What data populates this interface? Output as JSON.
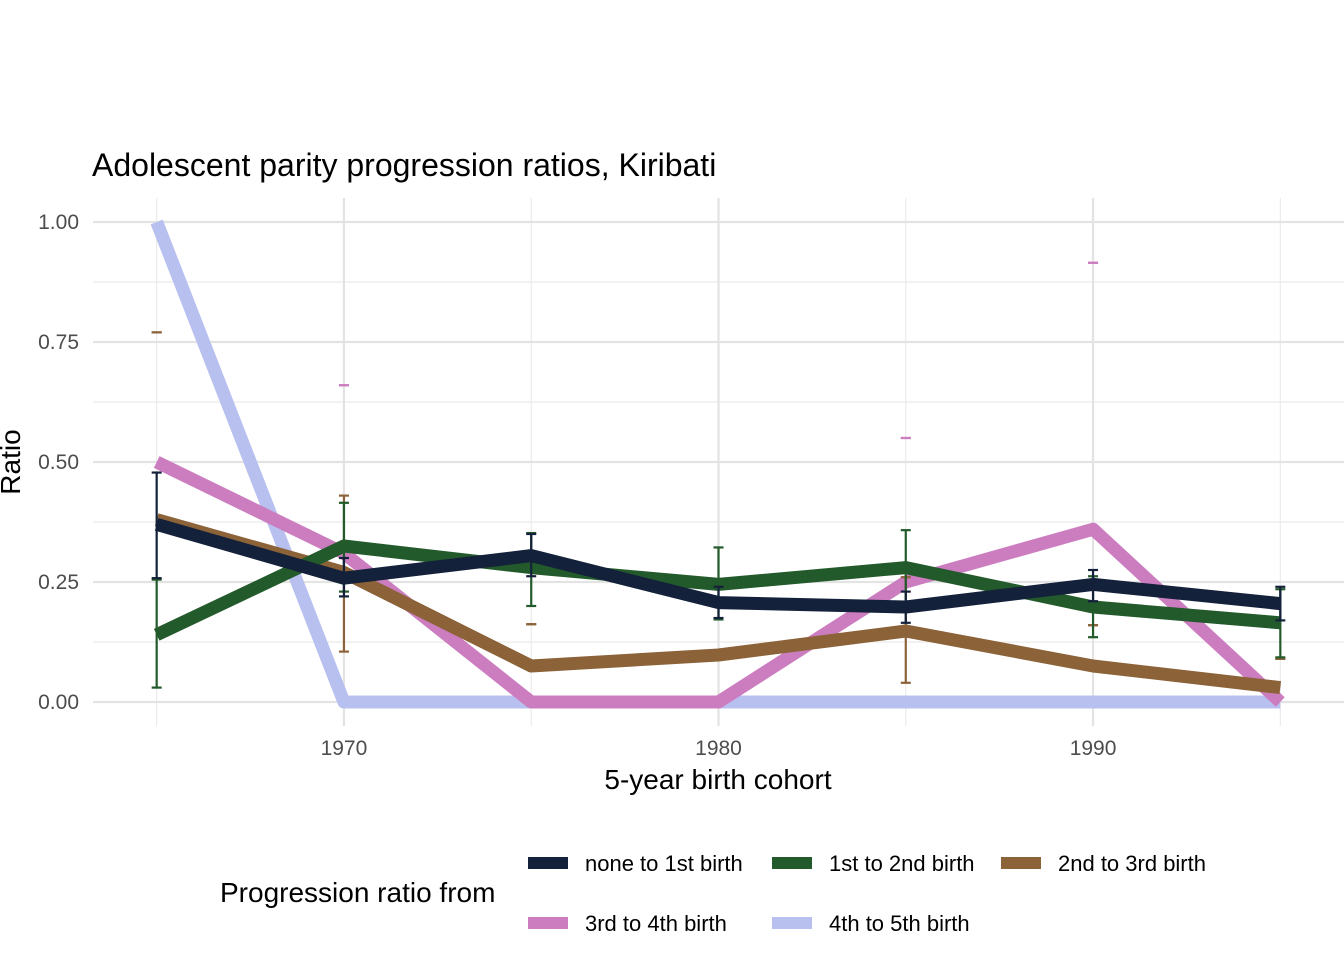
{
  "chart_data": {
    "type": "line",
    "title": "Adolescent parity progression ratios,  Kiribati",
    "xlabel": "5-year birth cohort",
    "ylabel": "Ratio",
    "xlim": [
      1963.3,
      1996.7
    ],
    "ylim": [
      -0.05,
      1.05
    ],
    "x_ticks": [
      1970,
      1980,
      1990
    ],
    "x_tick_labels": [
      "1970",
      "1980",
      "1990"
    ],
    "y_ticks": [
      0,
      0.25,
      0.5,
      0.75,
      1
    ],
    "y_tick_labels": [
      "0.00",
      "0.25",
      "0.50",
      "0.75",
      "1.00"
    ],
    "x": [
      1965,
      1970,
      1975,
      1980,
      1985,
      1990,
      1995
    ],
    "legend_title": "Progression ratio from",
    "legend_position": "bottom",
    "series": [
      {
        "name": "4th to 5th birth",
        "color": "#b8c0f0",
        "values": [
          1.0,
          0.0,
          0.0,
          0.0,
          0.0,
          0.0,
          0.0
        ],
        "ci": []
      },
      {
        "name": "3rd to 4th birth",
        "color": "#cc7dc0",
        "values": [
          0.5,
          0.31,
          0.0,
          0.0,
          0.25,
          0.36,
          0.0
        ],
        "ci": [
          {
            "x": 1970,
            "low": 0.66,
            "high": 0.66
          },
          {
            "x": 1985,
            "low": 0.55,
            "high": 0.55
          },
          {
            "x": 1990,
            "low": 0.915,
            "high": 0.915
          }
        ]
      },
      {
        "name": "2nd to 3rd birth",
        "color": "#8c6239",
        "values": [
          0.38,
          0.27,
          0.075,
          0.098,
          0.148,
          0.075,
          0.03
        ],
        "ci": [
          {
            "x": 1965,
            "low": 0.77,
            "high": 0.77
          },
          {
            "x": 1970,
            "low": 0.105,
            "high": 0.43
          },
          {
            "x": 1975,
            "low": 0.162,
            "high": 0.162
          },
          {
            "x": 1985,
            "low": 0.04,
            "high": 0.26
          },
          {
            "x": 1990,
            "low": 0.16,
            "high": 0.16
          },
          {
            "x": 1995,
            "low": 0.09,
            "high": 0.09
          }
        ]
      },
      {
        "name": "1st to 2nd birth",
        "color": "#235a2b",
        "values": [
          0.14,
          0.325,
          0.28,
          0.245,
          0.28,
          0.198,
          0.165
        ],
        "ci": [
          {
            "x": 1965,
            "low": 0.03,
            "high": 0.255
          },
          {
            "x": 1970,
            "low": 0.23,
            "high": 0.415
          },
          {
            "x": 1975,
            "low": 0.2,
            "high": 0.352
          },
          {
            "x": 1980,
            "low": 0.172,
            "high": 0.322
          },
          {
            "x": 1985,
            "low": 0.2,
            "high": 0.358
          },
          {
            "x": 1990,
            "low": 0.135,
            "high": 0.262
          },
          {
            "x": 1995,
            "low": 0.093,
            "high": 0.235
          }
        ]
      },
      {
        "name": "none to 1st birth",
        "color": "#14213a",
        "values": [
          0.37,
          0.258,
          0.305,
          0.207,
          0.198,
          0.245,
          0.205
        ],
        "ci": [
          {
            "x": 1965,
            "low": 0.258,
            "high": 0.478
          },
          {
            "x": 1970,
            "low": 0.22,
            "high": 0.3
          },
          {
            "x": 1975,
            "low": 0.262,
            "high": 0.35
          },
          {
            "x": 1980,
            "low": 0.175,
            "high": 0.24
          },
          {
            "x": 1985,
            "low": 0.165,
            "high": 0.23
          },
          {
            "x": 1990,
            "low": 0.21,
            "high": 0.275
          },
          {
            "x": 1995,
            "low": 0.17,
            "high": 0.24
          }
        ]
      }
    ],
    "legend_order": [
      "none to 1st birth",
      "1st to 2nd birth",
      "2nd to 3rd birth",
      "3rd to 4th birth",
      "4th to 5th birth"
    ]
  }
}
